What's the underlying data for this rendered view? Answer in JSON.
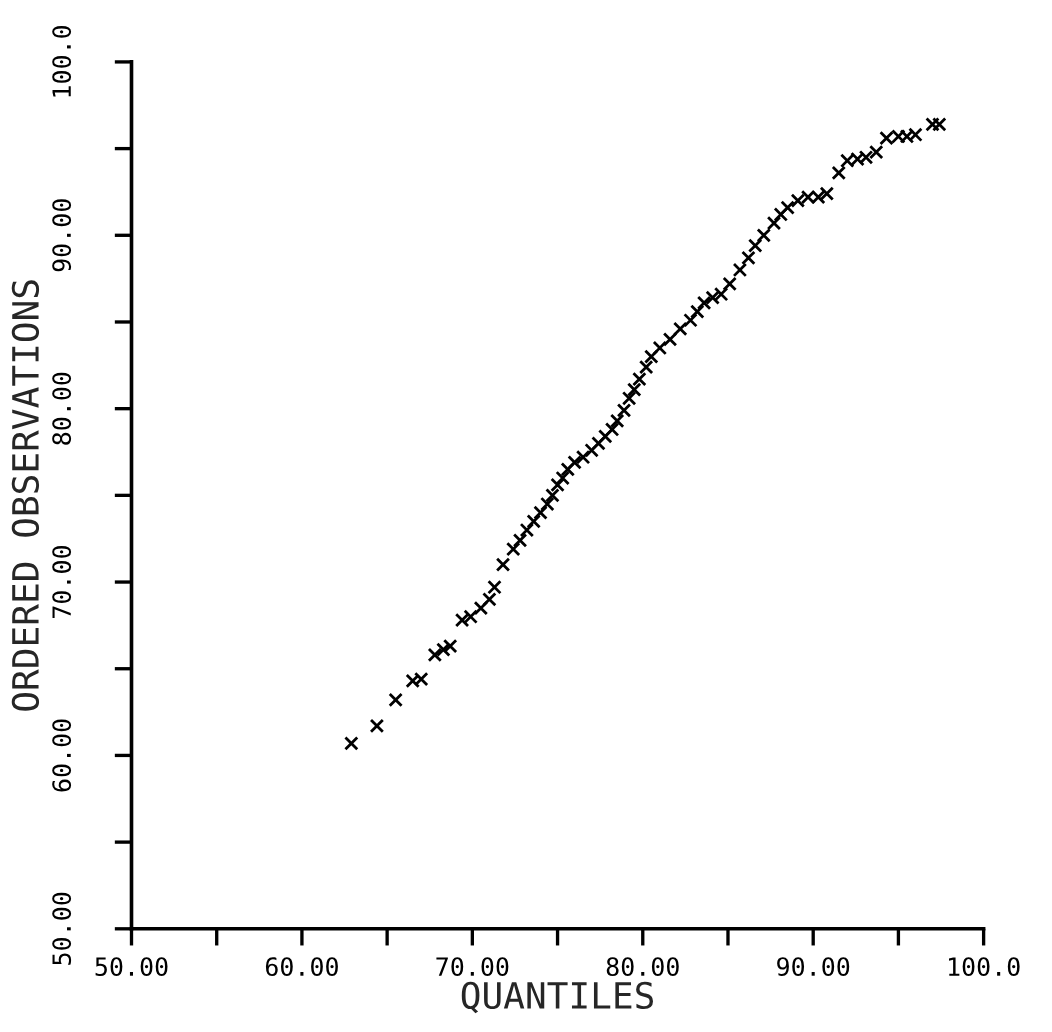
{
  "chart_data": {
    "type": "scatter",
    "xlabel": "QUANTILES",
    "ylabel": "ORDERED OBSERVATIONS",
    "xlim": [
      50,
      100
    ],
    "ylim": [
      50,
      100
    ],
    "xticks": [
      {
        "value": 50,
        "label": "50.00"
      },
      {
        "value": 55,
        "label": null
      },
      {
        "value": 60,
        "label": "60.00"
      },
      {
        "value": 65,
        "label": null
      },
      {
        "value": 70,
        "label": "70.00"
      },
      {
        "value": 75,
        "label": null
      },
      {
        "value": 80,
        "label": "80.00"
      },
      {
        "value": 85,
        "label": null
      },
      {
        "value": 90,
        "label": "90.00"
      },
      {
        "value": 95,
        "label": null
      },
      {
        "value": 100,
        "label": "100.0"
      }
    ],
    "yticks": [
      {
        "value": 50,
        "label": "50.00"
      },
      {
        "value": 55,
        "label": null
      },
      {
        "value": 60,
        "label": "60.00"
      },
      {
        "value": 65,
        "label": null
      },
      {
        "value": 70,
        "label": "70.00"
      },
      {
        "value": 75,
        "label": null
      },
      {
        "value": 80,
        "label": "80.00"
      },
      {
        "value": 85,
        "label": null
      },
      {
        "value": 90,
        "label": "90.00"
      },
      {
        "value": 95,
        "label": null
      },
      {
        "value": 100,
        "label": "100.0"
      }
    ],
    "marker": "cross",
    "grid": false,
    "series": [
      {
        "color": "#000000",
        "x": [
          62.9,
          64.4,
          65.5,
          66.5,
          67.0,
          67.8,
          68.3,
          68.7,
          69.4,
          69.9,
          70.5,
          71.0,
          71.3,
          71.8,
          72.4,
          72.8,
          73.2,
          73.6,
          74.0,
          74.4,
          74.7,
          75.0,
          75.3,
          75.6,
          76.0,
          76.5,
          77.0,
          77.4,
          77.8,
          78.2,
          78.5,
          78.9,
          79.2,
          79.5,
          79.8,
          80.2,
          80.5,
          81.0,
          81.6,
          82.2,
          82.8,
          83.2,
          83.6,
          84.1,
          84.6,
          85.1,
          85.7,
          86.2,
          86.6,
          87.1,
          87.7,
          88.1,
          88.5,
          89.1,
          89.7,
          90.3,
          90.8,
          91.5,
          92.0,
          92.6,
          93.1,
          93.7,
          94.3,
          95.0,
          95.5,
          96.0,
          97.0,
          97.4
        ],
        "values": [
          60.7,
          61.7,
          63.2,
          64.3,
          64.4,
          65.8,
          66.1,
          66.3,
          67.8,
          68.0,
          68.5,
          69.0,
          69.7,
          71.0,
          71.9,
          72.4,
          73.0,
          73.5,
          74.0,
          74.5,
          75.0,
          75.6,
          76.0,
          76.5,
          76.9,
          77.2,
          77.6,
          78.0,
          78.4,
          78.8,
          79.3,
          79.9,
          80.6,
          81.1,
          81.7,
          82.4,
          83.0,
          83.5,
          84.0,
          84.6,
          85.1,
          85.6,
          86.1,
          86.4,
          86.6,
          87.2,
          88.0,
          88.7,
          89.4,
          90.0,
          90.7,
          91.2,
          91.6,
          92.0,
          92.2,
          92.2,
          92.4,
          93.6,
          94.3,
          94.4,
          94.5,
          94.8,
          95.6,
          95.7,
          95.7,
          95.8,
          96.4,
          96.4
        ]
      }
    ]
  }
}
